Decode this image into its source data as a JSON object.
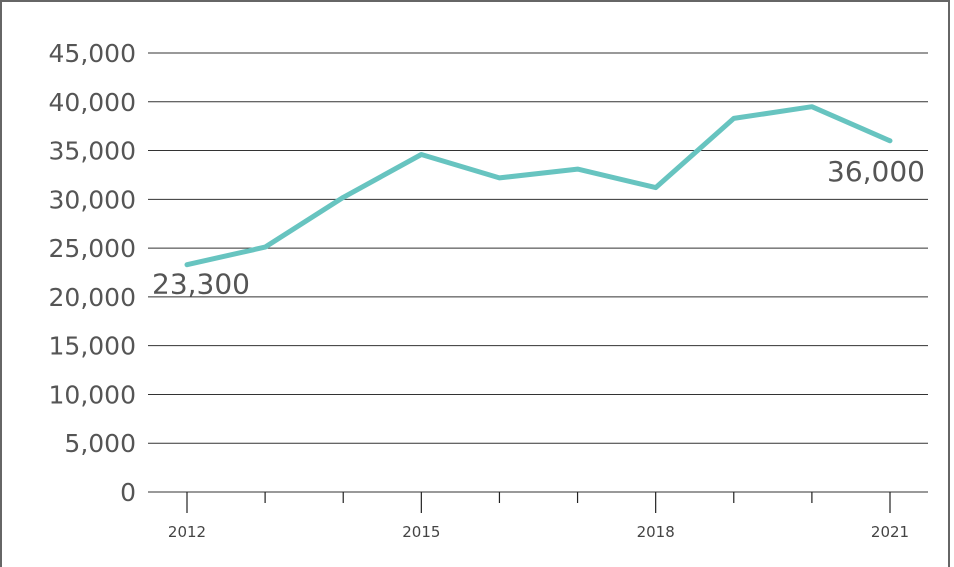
{
  "chart_data": {
    "type": "line",
    "x": [
      2012,
      2013,
      2014,
      2015,
      2016,
      2017,
      2018,
      2019,
      2020,
      2021
    ],
    "series": [
      {
        "values": [
          23300,
          25100,
          30200,
          34600,
          32200,
          33100,
          31200,
          38300,
          39500,
          36000
        ]
      }
    ],
    "x_tick_labels": [
      "2012",
      "2015",
      "2018",
      "2021"
    ],
    "y_tick_labels": [
      "0",
      "5,000",
      "10,000",
      "15,000",
      "20,000",
      "25,000",
      "30,000",
      "35,000",
      "40,000",
      "45,000"
    ],
    "y_ticks": [
      0,
      5000,
      10000,
      15000,
      20000,
      25000,
      30000,
      35000,
      40000,
      45000
    ],
    "ylim": [
      0,
      45000
    ],
    "xlim": [
      2012,
      2021
    ],
    "data_labels": [
      {
        "x": 2012,
        "text": "23,300"
      },
      {
        "x": 2021,
        "text": "36,000"
      }
    ],
    "title": "",
    "xlabel": "",
    "ylabel": "",
    "grid": "horizontal",
    "line_color": "#67c4c0",
    "grid_color": "#333333"
  }
}
